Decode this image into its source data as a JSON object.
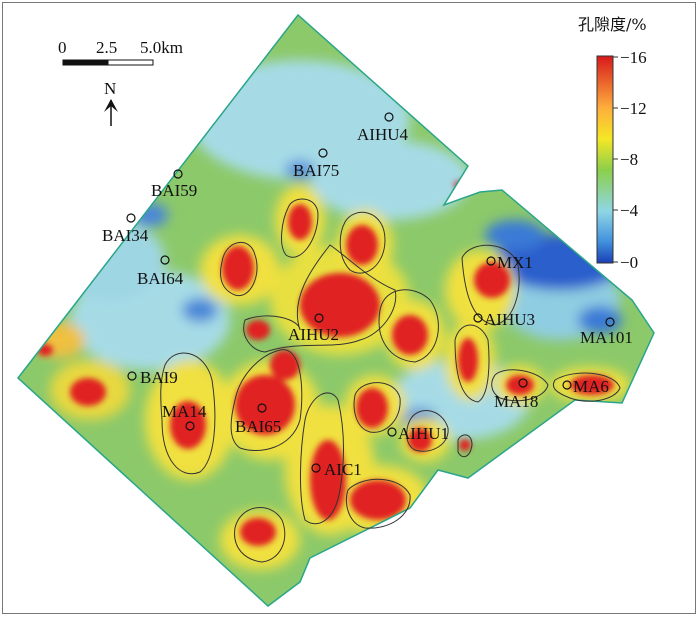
{
  "legend": {
    "title": "孔隙度/%",
    "ticks": [
      "16",
      "12",
      "8",
      "4",
      "0"
    ]
  },
  "scale_bar": {
    "labels": [
      "0",
      "2.5",
      "5.0km"
    ]
  },
  "north_arrow": {
    "label": "N"
  },
  "wells": [
    {
      "name": "AIHU4"
    },
    {
      "name": "BAI75"
    },
    {
      "name": "BAI59"
    },
    {
      "name": "BAI34"
    },
    {
      "name": "BAI64"
    },
    {
      "name": "MX1"
    },
    {
      "name": "AIHU3"
    },
    {
      "name": "MA101"
    },
    {
      "name": "AIHU2"
    },
    {
      "name": "BAI9"
    },
    {
      "name": "MA14"
    },
    {
      "name": "BAI65"
    },
    {
      "name": "MA18"
    },
    {
      "name": "MA6"
    },
    {
      "name": "AIHU1"
    },
    {
      "name": "AIC1"
    }
  ],
  "colors": {
    "high": "#e02020",
    "mid_high": "#f5e020",
    "mid": "#7cc24a",
    "mid_low": "#8fd3e0",
    "low": "#1f4fc8",
    "outline": "#2aa58a"
  }
}
